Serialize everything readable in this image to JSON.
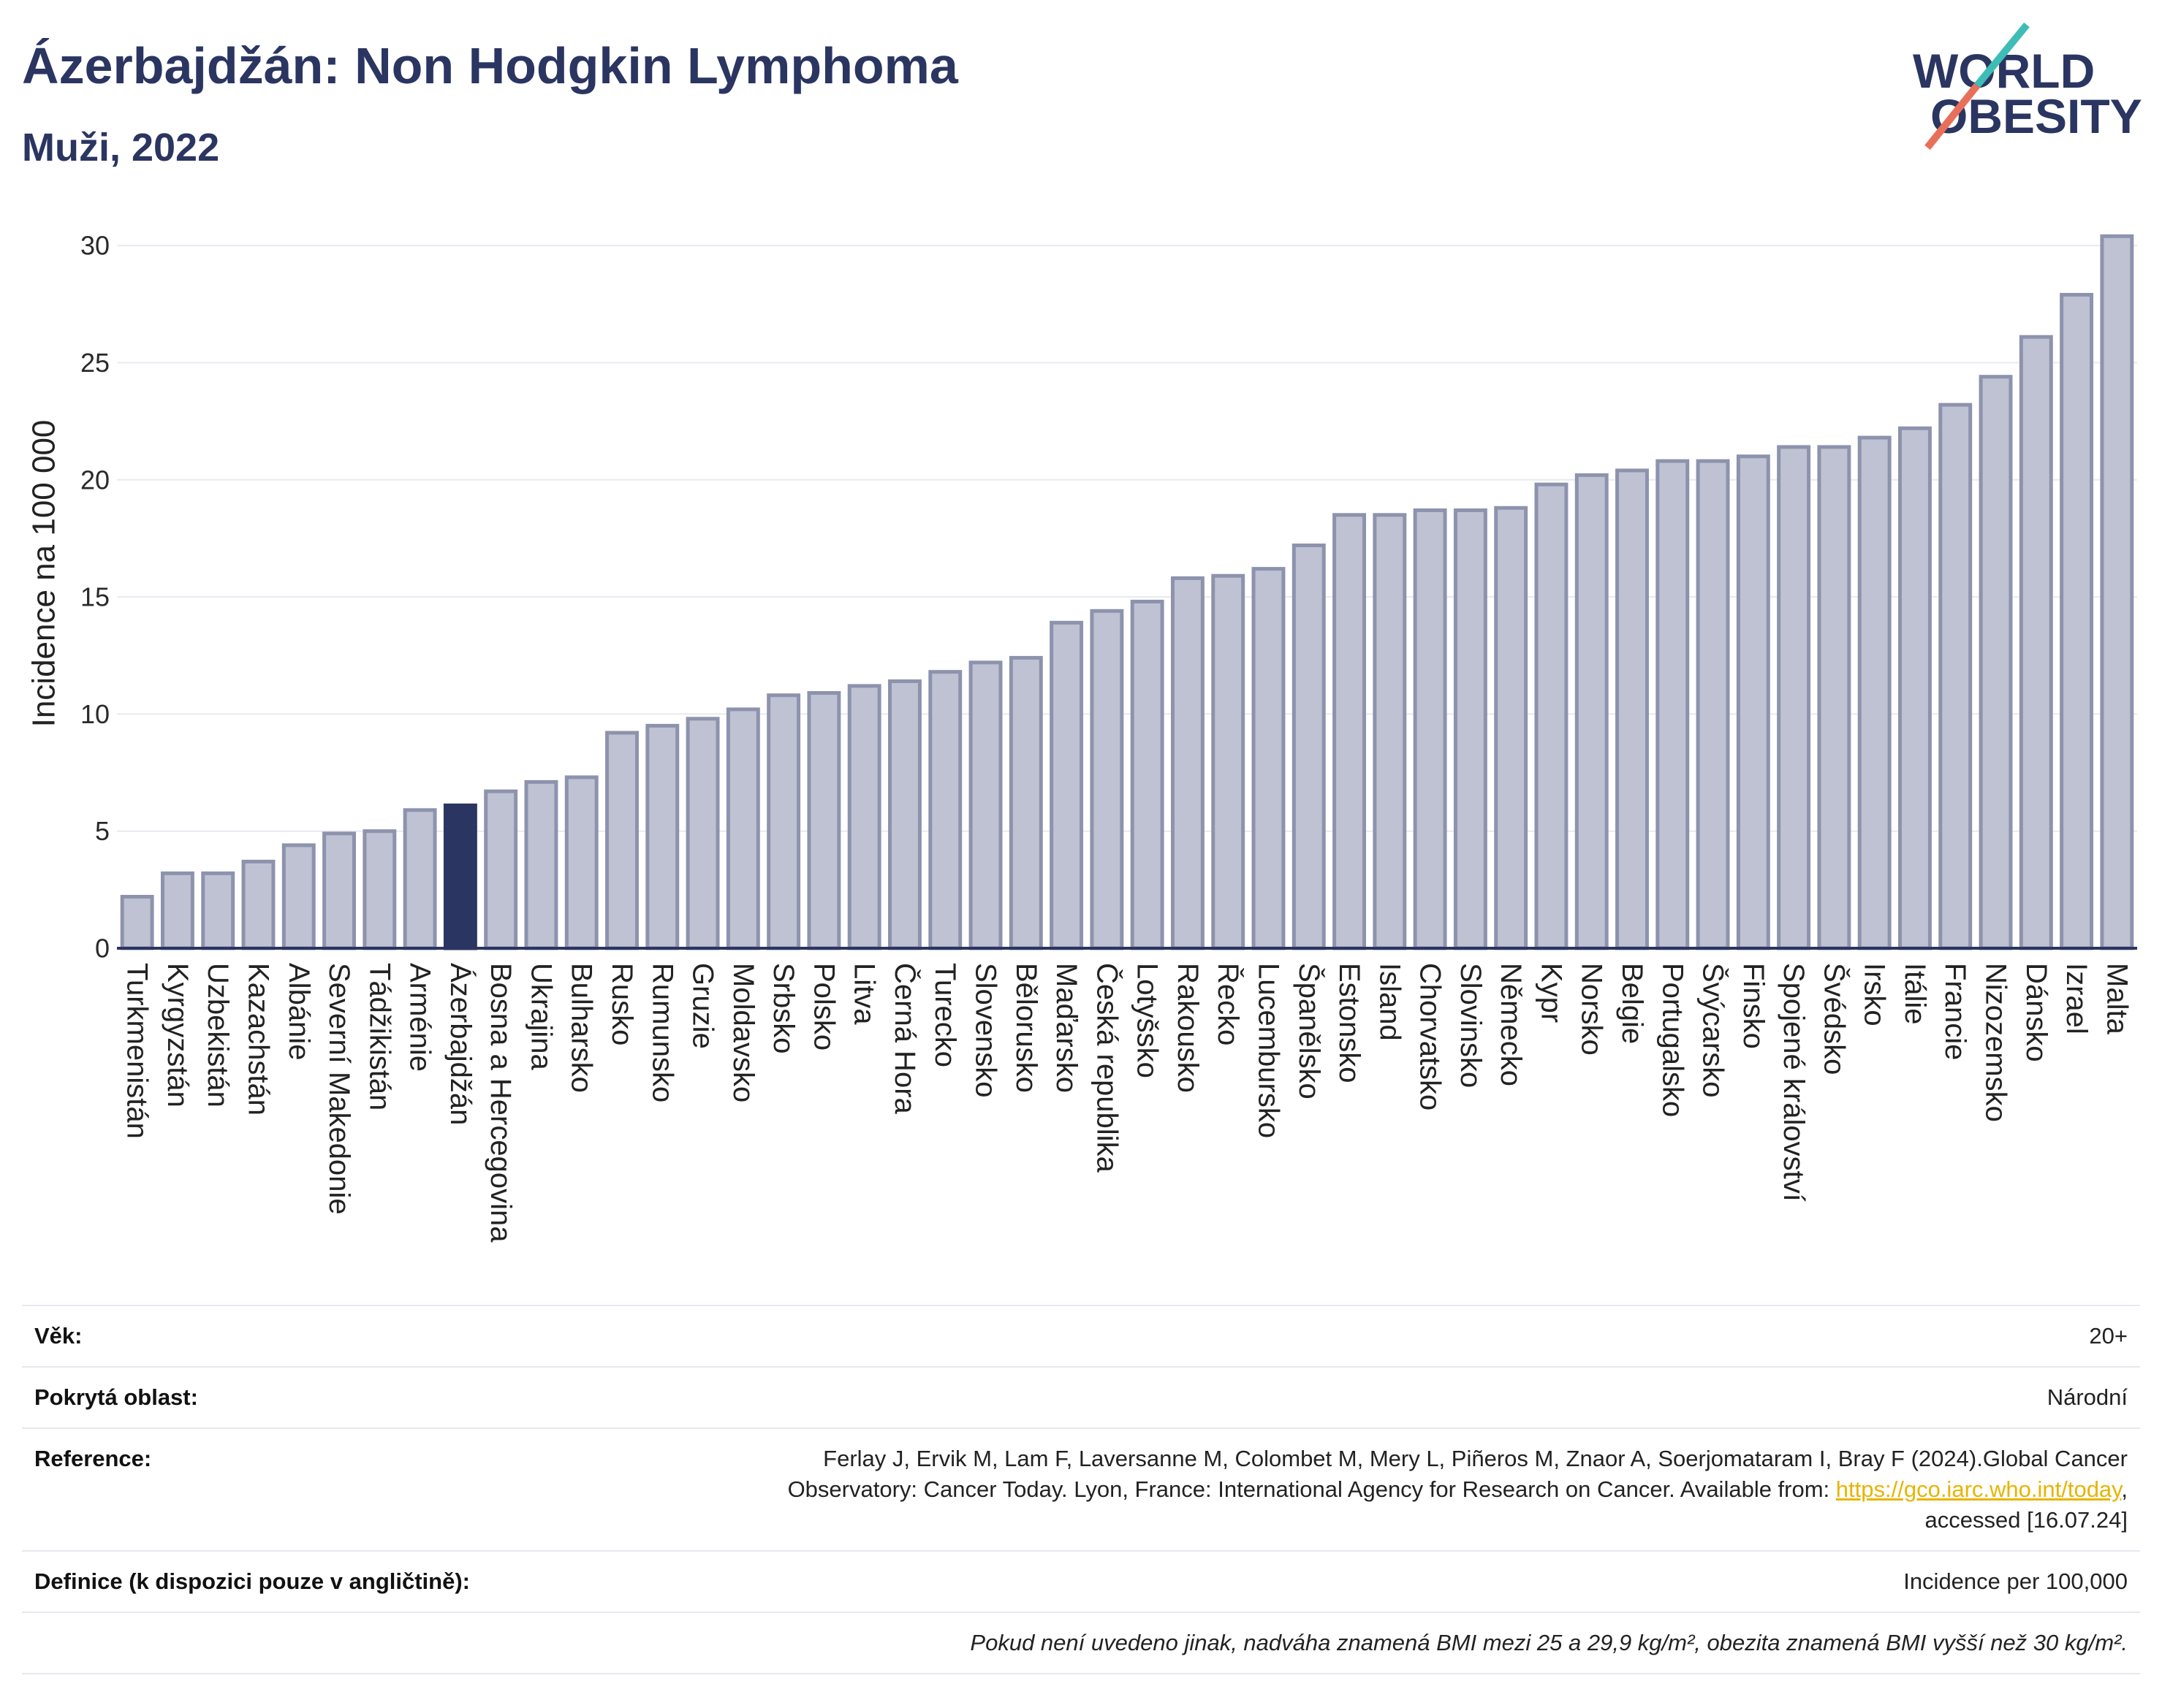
{
  "title": "Ázerbajdžán: Non Hodgkin Lymphoma",
  "subtitle": "Muži, 2022",
  "logo": {
    "line1": "WORLD",
    "line2": "OBESITY",
    "colors": {
      "text": "#2b3561",
      "slash_top": "#3dbdb5",
      "slash_bottom": "#e8705a"
    }
  },
  "chart_data": {
    "type": "bar",
    "ylabel": "Incidence na 100 000",
    "ylim": [
      0,
      32
    ],
    "yticks": [
      0,
      5,
      10,
      15,
      20,
      25,
      30
    ],
    "grid": true,
    "highlight_index": 8,
    "colors": {
      "bar": "#bec2d2",
      "bar_stroke": "#8d93ad",
      "highlight": "#2b3561",
      "axis": "#2b3561",
      "grid": "#e8eaf0"
    },
    "categories": [
      "Turkmenistán",
      "Kyrgyzstán",
      "Uzbekistán",
      "Kazachstán",
      "Albánie",
      "Severní Makedonie",
      "Tádžikistán",
      "Arménie",
      "Ázerbajdžán",
      "Bosna a Hercegovina",
      "Ukrajina",
      "Bulharsko",
      "Rusko",
      "Rumunsko",
      "Gruzie",
      "Moldavsko",
      "Srbsko",
      "Polsko",
      "Litva",
      "Černá Hora",
      "Turecko",
      "Slovensko",
      "Bělorusko",
      "Maďarsko",
      "Česká republika",
      "Lotyšsko",
      "Rakousko",
      "Řecko",
      "Lucembursko",
      "Španělsko",
      "Estonsko",
      "Island",
      "Chorvatsko",
      "Slovinsko",
      "Německo",
      "Kypr",
      "Norsko",
      "Belgie",
      "Portugalsko",
      "Švýcarsko",
      "Finsko",
      "Spojené království",
      "Švédsko",
      "Irsko",
      "Itálie",
      "Francie",
      "Nizozemsko",
      "Dánsko",
      "Izrael",
      "Malta"
    ],
    "values": [
      2.2,
      3.2,
      3.2,
      3.7,
      4.4,
      4.9,
      5.0,
      5.9,
      6.1,
      6.7,
      7.1,
      7.3,
      9.2,
      9.5,
      9.8,
      10.2,
      10.8,
      10.9,
      11.2,
      11.4,
      11.8,
      12.2,
      12.4,
      13.9,
      14.4,
      14.8,
      15.8,
      15.9,
      16.2,
      17.2,
      18.5,
      18.5,
      18.7,
      18.7,
      18.8,
      19.8,
      20.2,
      20.4,
      20.8,
      20.8,
      21.0,
      21.4,
      21.4,
      21.8,
      22.2,
      23.2,
      24.4,
      26.1,
      27.9,
      30.4
    ]
  },
  "table": {
    "age": {
      "label": "Věk:",
      "value": "20+"
    },
    "area": {
      "label": "Pokrytá oblast:",
      "value": "Národní"
    },
    "reference": {
      "label": "Reference:",
      "line1": "Ferlay J, Ervik M, Lam F, Laversanne M, Colombet M, Mery L, Piñeros M, Znaor A, Soerjomataram I, Bray F (2024).Global Cancer",
      "line2": "Observatory: Cancer Today. Lyon, France: International Agency for Research on Cancer. Available from: ",
      "link": "https://gco.iarc.who.int/today",
      "line2_end": ",",
      "line3": "accessed [16.07.24]"
    },
    "definition": {
      "label": "Definice (k dispozici pouze v angličtině):",
      "value": "Incidence per 100,000"
    },
    "note": "Pokud není uvedeno jinak, nadváha znamená BMI mezi 25 a 29,9 kg/m², obezita znamená BMI vyšší než 30 kg/m²."
  }
}
